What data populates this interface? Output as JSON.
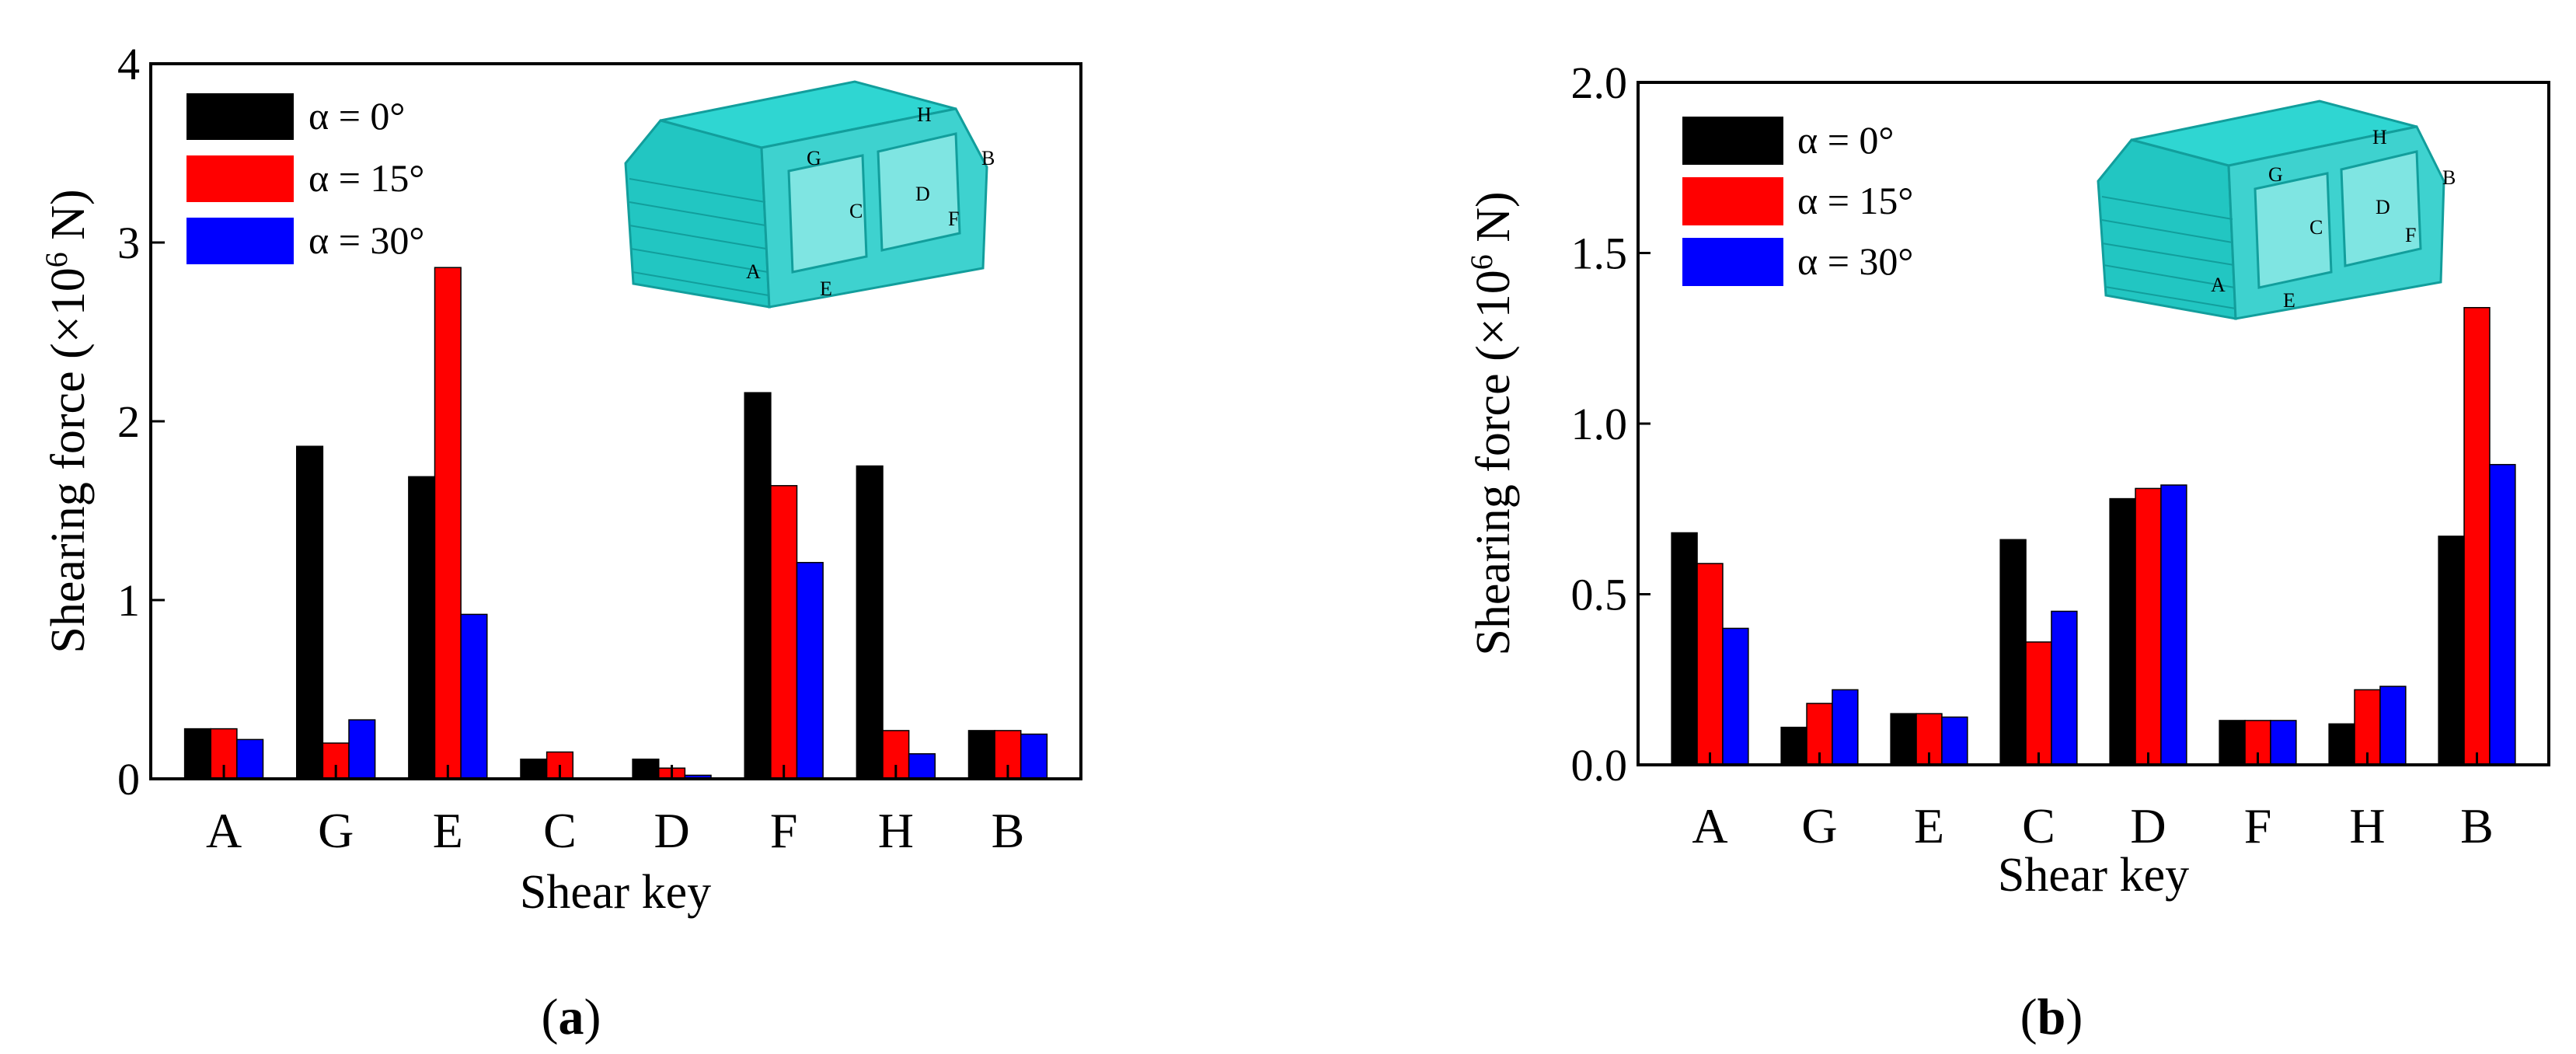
{
  "chart_data": [
    {
      "type": "bar",
      "panel": "a",
      "categories": [
        "A",
        "G",
        "E",
        "C",
        "D",
        "F",
        "H",
        "B"
      ],
      "series": [
        {
          "name": "α = 0°",
          "color": "#000000",
          "values": [
            0.28,
            1.86,
            1.69,
            0.11,
            0.11,
            2.16,
            1.75,
            0.27
          ]
        },
        {
          "name": "α = 15°",
          "color": "#ff0000",
          "values": [
            0.28,
            0.2,
            2.86,
            0.15,
            0.06,
            1.64,
            0.27,
            0.27
          ]
        },
        {
          "name": "α = 30°",
          "color": "#0000ff",
          "values": [
            0.22,
            0.33,
            0.92,
            0.0,
            0.02,
            1.21,
            0.14,
            0.25
          ]
        }
      ],
      "xlabel": "Shear key",
      "ylabel": "Shearing force (×10",
      "ylabel_exp": "6",
      "ylabel_tail": " N)",
      "ylim": [
        0,
        4
      ],
      "yticks": [
        "0",
        "1",
        "2",
        "3",
        "4"
      ],
      "yticks_values": [
        0,
        1,
        2,
        3,
        4
      ],
      "legend_position": "top-left",
      "inset_labels": [
        "H",
        "G",
        "B",
        "D",
        "C",
        "F",
        "A",
        "E"
      ]
    },
    {
      "type": "bar",
      "panel": "b",
      "categories": [
        "A",
        "G",
        "E",
        "C",
        "D",
        "F",
        "H",
        "B"
      ],
      "series": [
        {
          "name": "α = 0°",
          "color": "#000000",
          "values": [
            0.68,
            0.11,
            0.15,
            0.66,
            0.78,
            0.13,
            0.12,
            0.67
          ]
        },
        {
          "name": "α = 15°",
          "color": "#ff0000",
          "values": [
            0.59,
            0.18,
            0.15,
            0.36,
            0.81,
            0.13,
            0.22,
            1.34
          ]
        },
        {
          "name": "α = 30°",
          "color": "#0000ff",
          "values": [
            0.4,
            0.22,
            0.14,
            0.45,
            0.82,
            0.13,
            0.23,
            0.88
          ]
        }
      ],
      "xlabel": "Shear key",
      "ylabel": "Shearing force (×10",
      "ylabel_exp": "6",
      "ylabel_tail": " N)",
      "ylim": [
        0,
        2
      ],
      "yticks": [
        "0.0",
        "0.5",
        "1.0",
        "1.5",
        "2.0"
      ],
      "yticks_values": [
        0,
        0.5,
        1,
        1.5,
        2
      ],
      "legend_position": "top-left",
      "inset_labels": [
        "H",
        "G",
        "B",
        "D",
        "C",
        "F",
        "A",
        "E"
      ]
    }
  ],
  "captions": [
    {
      "open": "(",
      "letter": "a",
      "close": ")"
    },
    {
      "open": "(",
      "letter": "b",
      "close": ")"
    }
  ]
}
